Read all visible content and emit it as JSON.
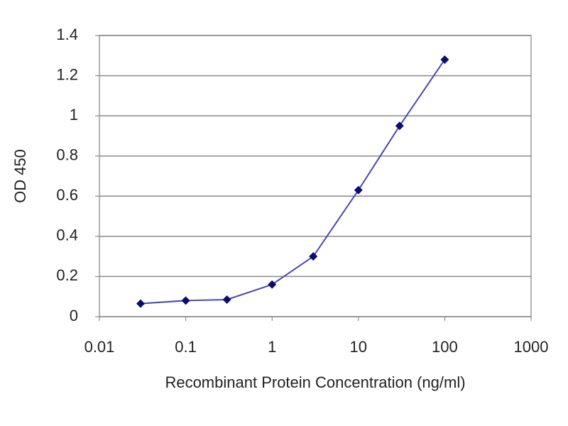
{
  "chart_data": {
    "type": "line",
    "xlabel": "Recombinant Protein Concentration (ng/ml)",
    "ylabel": "OD 450",
    "x": [
      0.03,
      0.1,
      0.3,
      1,
      3,
      10,
      30,
      100
    ],
    "series": [
      {
        "color": "#4848b0",
        "marker_color": "#0c0c6e",
        "values": [
          0.065,
          0.08,
          0.085,
          0.16,
          0.3,
          0.63,
          0.95,
          1.28
        ]
      }
    ],
    "xscale": "log",
    "xlim": [
      0.01,
      1000
    ],
    "xticks": [
      0.01,
      0.1,
      1,
      10,
      100,
      1000
    ],
    "ylim": [
      0,
      1.4
    ],
    "yticks": [
      0,
      0.2,
      0.4,
      0.6,
      0.8,
      1,
      1.2,
      1.4
    ],
    "grid": true
  }
}
